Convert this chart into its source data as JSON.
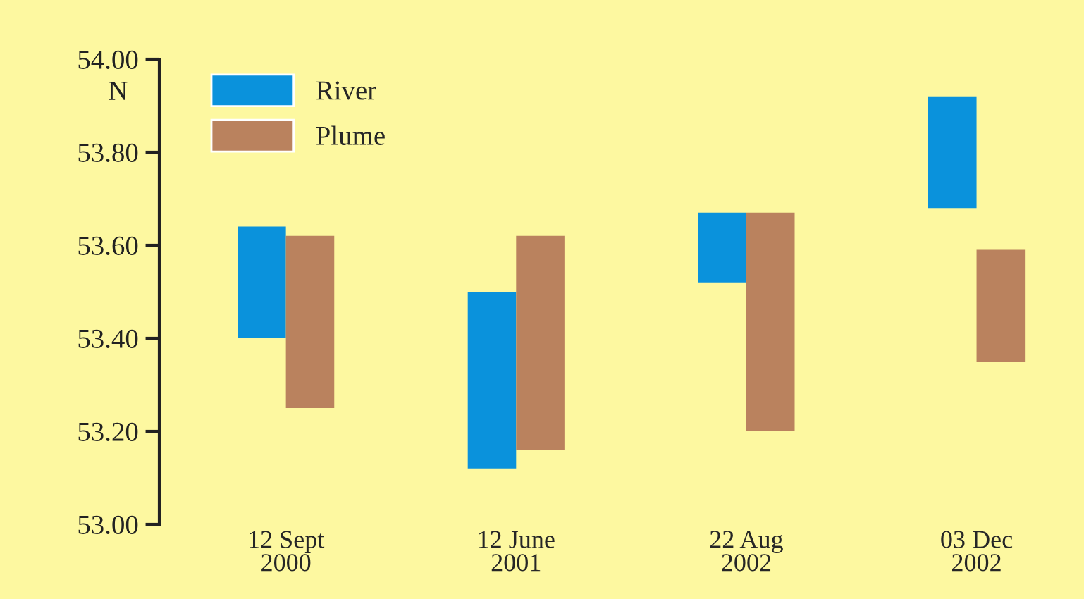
{
  "chart_data": {
    "type": "bar",
    "ylabel": "N",
    "categories": [
      "12 Sept\n2000",
      "12 June\n2001",
      "22 Aug\n2002",
      "03 Dec\n2002"
    ],
    "series": [
      {
        "name": "River",
        "color": "#0a92dc",
        "values": [
          0.24,
          0.38,
          0.15,
          0.24
        ],
        "base": [
          53.4,
          53.12,
          53.52,
          53.68
        ]
      },
      {
        "name": "Plume",
        "color": "#ba825e",
        "values": [
          0.37,
          0.46,
          0.47,
          0.24
        ],
        "base": [
          53.25,
          53.16,
          53.2,
          53.35
        ]
      }
    ],
    "ylim": [
      53.0,
      54.0
    ],
    "yticks": [
      {
        "value": 53.0,
        "label": "53.00"
      },
      {
        "value": 53.2,
        "label": "53.20"
      },
      {
        "value": 53.4,
        "label": "53.40"
      },
      {
        "value": 53.6,
        "label": "53.60"
      },
      {
        "value": 53.8,
        "label": "53.80"
      },
      {
        "value": 54.0,
        "label": "54.00"
      }
    ],
    "grid": false,
    "legend": "top left"
  }
}
